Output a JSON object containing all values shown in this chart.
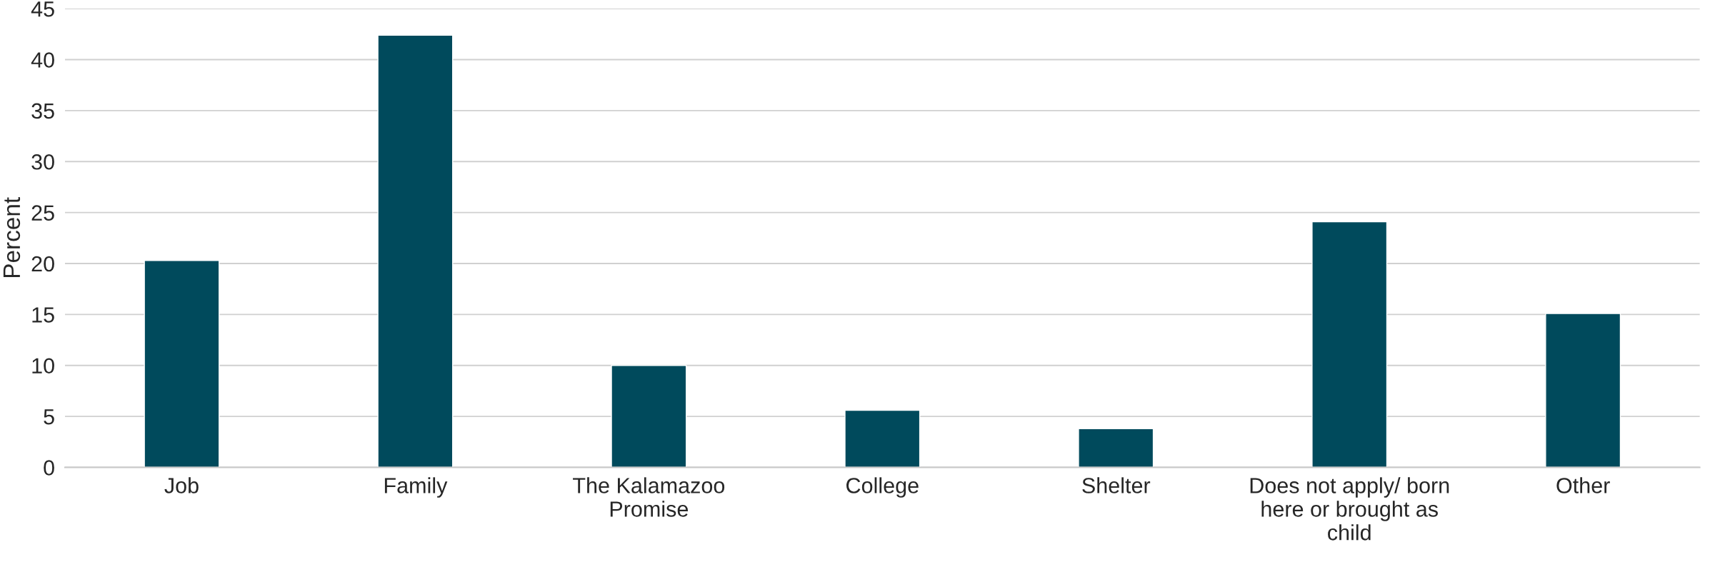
{
  "chart_data": {
    "type": "bar",
    "ylabel": "Percent",
    "categories": [
      "Job",
      "Family",
      "The Kalamazoo\nPromise",
      "College",
      "Shelter",
      "Does not apply/ born\nhere or brought as\nchild",
      "Other"
    ],
    "values": [
      20.3,
      42.4,
      10.0,
      5.6,
      3.8,
      24.1,
      15.1
    ],
    "color": "#004a5c",
    "ylim": [
      0,
      45
    ],
    "yticks": [
      0,
      5,
      10,
      15,
      20,
      25,
      30,
      35,
      40,
      45
    ],
    "grid": "y",
    "legend": false
  }
}
